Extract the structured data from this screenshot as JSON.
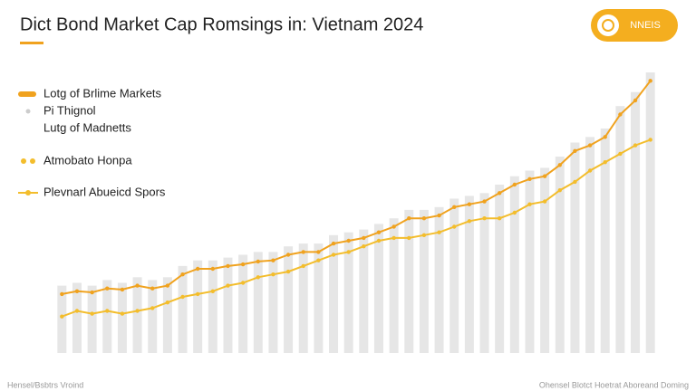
{
  "chart_data": {
    "type": "line",
    "title": "Dict Bond Market Cap Romsings in: Vietnam 2024",
    "badge": "NNEIS",
    "categories": [
      null,
      null,
      null,
      null,
      null,
      null,
      null,
      null,
      null,
      null,
      null,
      null,
      null,
      null,
      null,
      null,
      null,
      null,
      null,
      null,
      null,
      null,
      null,
      null,
      null,
      null,
      null,
      null,
      null,
      null,
      null,
      null,
      null,
      null,
      null,
      null,
      null,
      null,
      null,
      null
    ],
    "ylim": [
      0,
      100
    ],
    "series": [
      {
        "name": "Pi Thignol",
        "color": "#e6e6e6",
        "kind": "bar",
        "values": [
          24,
          25,
          24,
          26,
          25,
          27,
          26,
          27,
          31,
          33,
          33,
          34,
          35,
          36,
          36,
          38,
          39,
          39,
          42,
          43,
          44,
          46,
          48,
          51,
          51,
          52,
          55,
          56,
          57,
          60,
          63,
          65,
          66,
          70,
          75,
          77,
          80,
          88,
          93,
          100
        ]
      },
      {
        "name": "Lotg of Brlime Markets",
        "color": "#f0a21e",
        "kind": "line",
        "values": [
          21,
          22,
          21.6,
          23,
          22.6,
          24,
          23,
          24,
          28,
          30,
          30,
          31,
          31.6,
          32.6,
          33,
          35,
          36,
          36,
          39,
          40,
          41,
          43,
          45,
          48,
          48,
          49,
          52,
          53,
          54,
          57,
          60,
          62,
          63,
          67,
          72,
          74,
          77,
          85,
          90,
          97
        ]
      },
      {
        "name": "Atmobato Honpa",
        "color": "#f3bd2c",
        "kind": "line",
        "values": [
          13,
          15,
          14,
          15,
          14,
          15,
          16,
          18,
          20,
          21,
          22,
          24,
          25,
          27,
          28,
          29,
          31,
          33,
          35,
          36,
          38,
          40,
          41,
          41,
          42,
          43,
          45,
          47,
          48,
          48,
          50,
          53,
          54,
          58,
          61,
          65,
          68,
          71,
          74,
          76
        ]
      }
    ],
    "legend_notes": [
      "Lutg of Madnetts",
      "Plevnarl Abueicd Spors"
    ],
    "footer_left": "Hensel/Bsbtrs Vroind",
    "footer_right": "Ohensel Blotct Hoetrat Aboreand Doming"
  }
}
